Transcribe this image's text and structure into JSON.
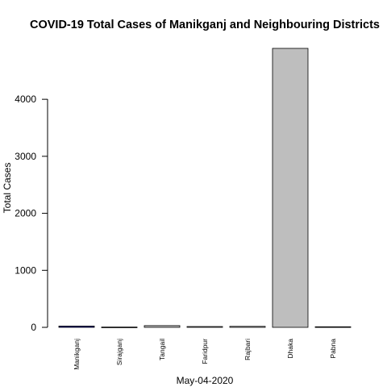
{
  "chart_data": {
    "type": "bar",
    "title": "COVID-19 Total Cases of Manikganj and Neighbouring Districts",
    "xlabel": "May-04-2020",
    "ylabel": "Total Cases",
    "categories": [
      "Manikganj",
      "Sirajganj",
      "Tangail",
      "Faridpur",
      "Rajbari",
      "Dhaka",
      "Pabna"
    ],
    "values": [
      22,
      5,
      30,
      14,
      17,
      4893,
      10
    ],
    "yticks": [
      0,
      1000,
      2000,
      3000,
      4000
    ],
    "ylim": [
      0,
      4893
    ],
    "grid": false,
    "colors": {
      "default_bar": "#bebebe",
      "highlight_bar": "#00008b",
      "highlight_category": "Manikganj",
      "bar_border": "#000000"
    }
  }
}
